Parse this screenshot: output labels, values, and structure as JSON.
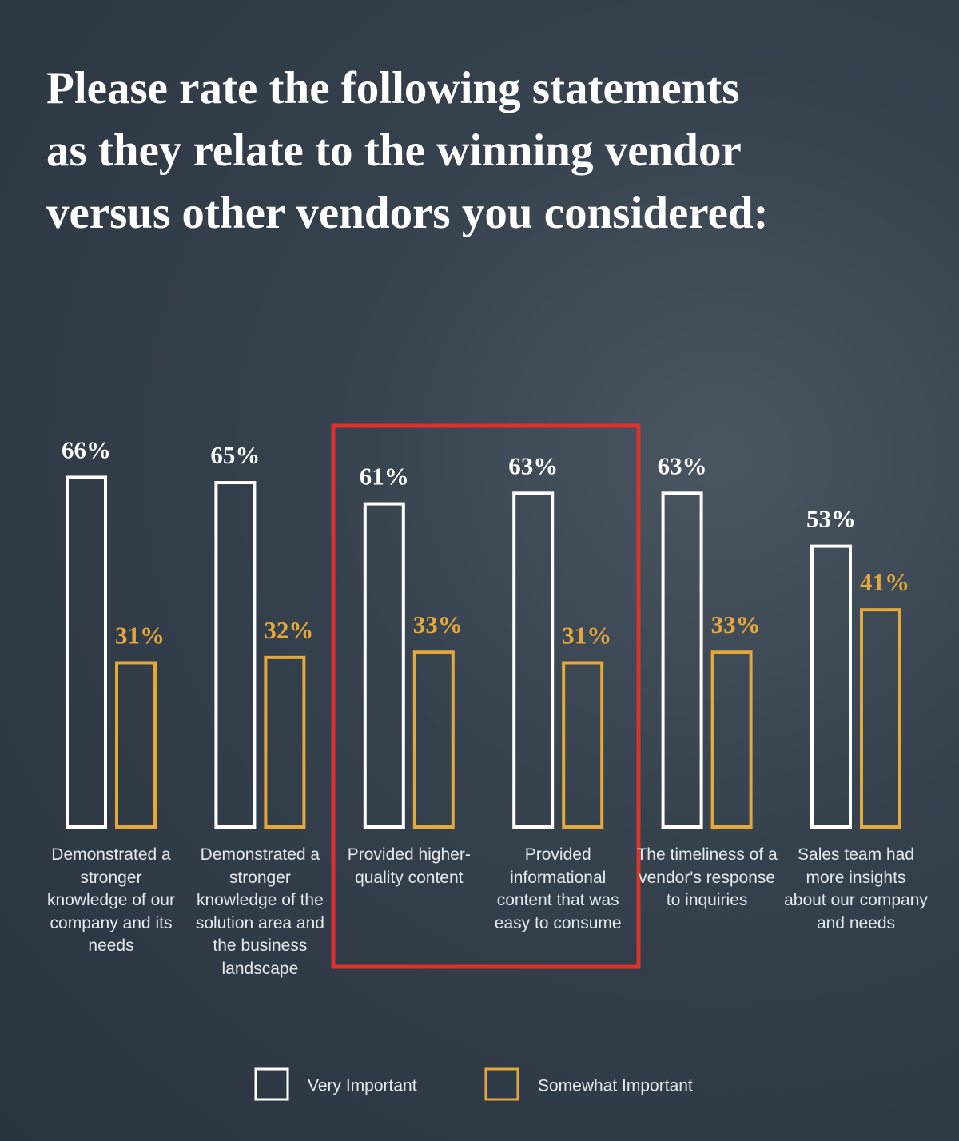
{
  "chart_data": {
    "type": "bar",
    "title": "Please rate the following statements as they relate to the winning vendor versus other vendors you considered:",
    "categories": [
      "Demonstrated a stronger knowledge of our company and its needs",
      "Demonstrated a stronger knowledge of the solution area and the business landscape",
      "Provided higher-quality content",
      "Provided informational content that was easy to consume",
      "The timeliness of a vendor's response to inquiries",
      "Sales team had more insights about our company and needs"
    ],
    "series": [
      {
        "name": "Very Important",
        "color": "#ffffff",
        "values": [
          66,
          65,
          61,
          63,
          63,
          53
        ],
        "value_labels": [
          "66%",
          "65%",
          "61%",
          "63%",
          "63%",
          "53%"
        ]
      },
      {
        "name": "Somewhat Important",
        "color": "#e4a83b",
        "values": [
          31,
          32,
          33,
          31,
          33,
          41
        ],
        "value_labels": [
          "31%",
          "32%",
          "33%",
          "31%",
          "33%",
          "41%"
        ]
      }
    ]
  }
}
